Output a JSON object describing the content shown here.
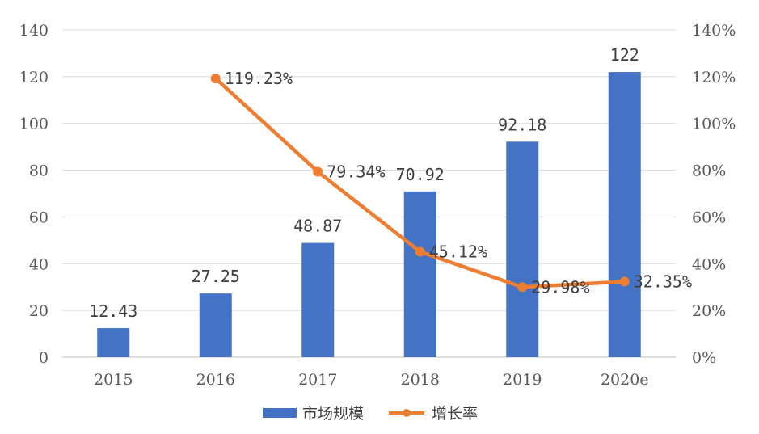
{
  "chart_data": {
    "type": "bar",
    "categories": [
      "2015",
      "2016",
      "2017",
      "2018",
      "2019",
      "2020e"
    ],
    "series": [
      {
        "name": "市场规模",
        "type": "bar",
        "axis": "left",
        "values": [
          12.43,
          27.25,
          48.87,
          70.92,
          92.18,
          122
        ],
        "labels": [
          "12.43",
          "27.25",
          "48.87",
          "70.92",
          "92.18",
          "122"
        ]
      },
      {
        "name": "增长率",
        "type": "line",
        "axis": "right",
        "values": [
          null,
          119.23,
          79.34,
          45.12,
          29.98,
          32.35
        ],
        "labels": [
          "",
          "119.23%",
          "79.34%",
          "45.12%",
          "29.98%",
          "32.35%"
        ]
      }
    ],
    "ylim": [
      0,
      140
    ],
    "y_ticks": [
      "0",
      "20",
      "40",
      "60",
      "80",
      "100",
      "120",
      "140"
    ],
    "y2lim": [
      0,
      140
    ],
    "y2_ticks": [
      "0%",
      "20%",
      "40%",
      "60%",
      "80%",
      "100%",
      "120%",
      "140%"
    ],
    "grid": true,
    "legend": "bottom",
    "colors": {
      "bar": "#4472C4",
      "line": "#ED7D31",
      "grid": "#D9D9D9",
      "text": "#595959"
    }
  }
}
